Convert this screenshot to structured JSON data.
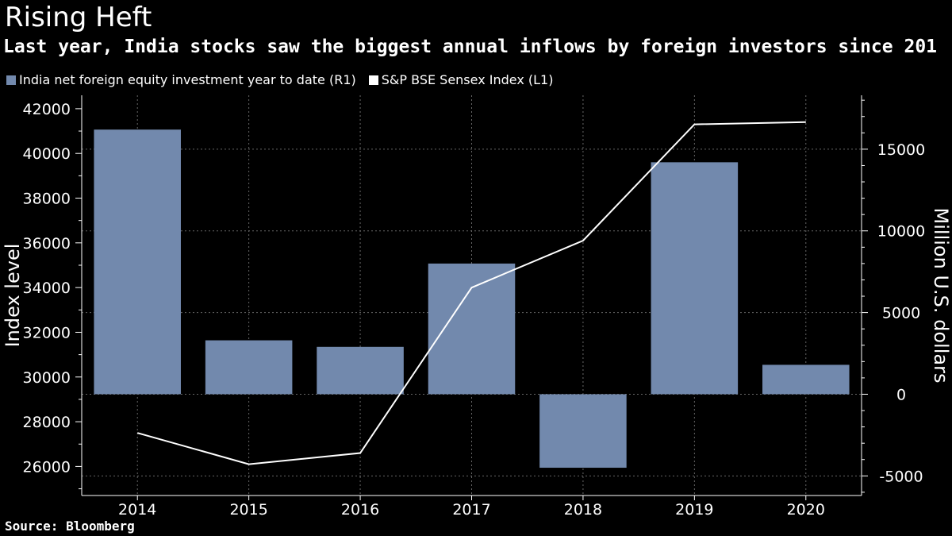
{
  "header": {
    "title": "Rising Heft",
    "subtitle": "Last year, India stocks saw the biggest annual inflows by foreign investors since 201"
  },
  "legend": {
    "bar_label": "India net foreign equity investment year to date (R1)",
    "line_label": "S&P BSE Sensex Index (L1)"
  },
  "footer": {
    "source": "Source: Bloomberg"
  },
  "colors": {
    "bar": "#7289ad",
    "line": "#ffffff",
    "grid": "#666666",
    "axis": "#ffffff",
    "background": "#000000"
  },
  "chart_data": {
    "type": "bar+line",
    "categories": [
      "2014",
      "2015",
      "2016",
      "2017",
      "2018",
      "2019",
      "2020"
    ],
    "series": [
      {
        "name": "India net foreign equity investment year to date (R1)",
        "kind": "bar",
        "axis": "right",
        "values": [
          16200,
          3300,
          2900,
          8000,
          -4500,
          14200,
          1800
        ]
      },
      {
        "name": "S&P BSE Sensex Index (L1)",
        "kind": "line",
        "axis": "left",
        "values": [
          27500,
          26100,
          26600,
          34000,
          36100,
          41300,
          41400
        ]
      }
    ],
    "left_axis": {
      "label": "Index level",
      "ticks": [
        26000,
        28000,
        30000,
        32000,
        34000,
        36000,
        38000,
        40000,
        42000
      ],
      "tick_labels": [
        "26000",
        "28000",
        "30000",
        "32000",
        "34000",
        "36000",
        "38000",
        "40000",
        "42000"
      ],
      "range": [
        24700,
        42600
      ]
    },
    "right_axis": {
      "label": "Million U.S. dollars",
      "ticks": [
        -5000,
        0,
        5000,
        10000,
        15000
      ],
      "tick_labels": [
        "-5000",
        "0",
        "5000",
        "10000",
        "15000"
      ],
      "range": [
        -6200,
        18300
      ]
    },
    "grid": true
  }
}
